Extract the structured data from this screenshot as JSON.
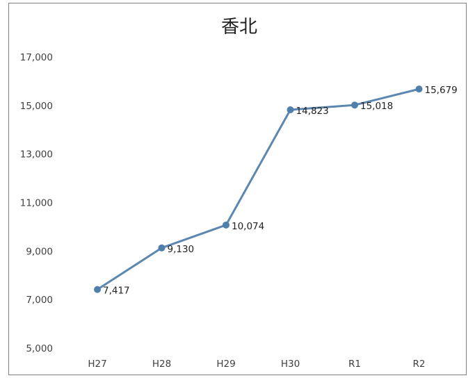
{
  "chart_data": {
    "type": "line",
    "title": "香北",
    "categories": [
      "H27",
      "H28",
      "H29",
      "H30",
      "R1",
      "R2"
    ],
    "series": [
      {
        "values": [
          7417,
          9130,
          10074,
          14823,
          15018,
          15679
        ],
        "labels": [
          "7,417",
          "9,130",
          "10,074",
          "14,823",
          "15,018",
          "15,679"
        ]
      }
    ],
    "ylim": [
      5000,
      17000
    ],
    "yticks": [
      5000,
      7000,
      9000,
      11000,
      13000,
      15000,
      17000
    ],
    "ytick_labels": [
      "5,000",
      "7,000",
      "9,000",
      "11,000",
      "13,000",
      "15,000",
      "17,000"
    ],
    "grid": false,
    "legend": "none",
    "colors": {
      "line": "#5b87b0",
      "marker": "#4f7fab"
    }
  }
}
